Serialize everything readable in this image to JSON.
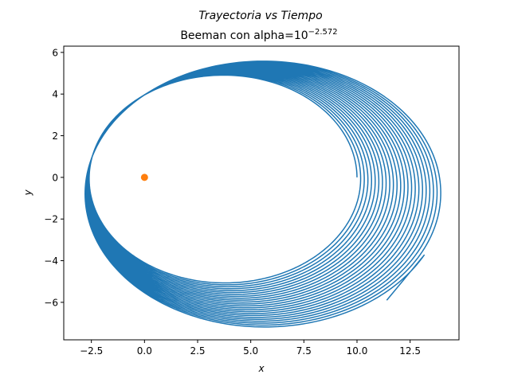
{
  "chart_data": {
    "type": "line",
    "suptitle": "Trayectoria vs Tiempo",
    "title": "Beeman con alpha=10",
    "title_exponent": "−2.572",
    "xlabel": "x",
    "ylabel": "y",
    "xlim": [
      -3.8,
      14.8
    ],
    "ylim": [
      -7.8,
      6.3
    ],
    "xticks": [
      -2.5,
      0.0,
      2.5,
      5.0,
      7.5,
      10.0,
      12.5
    ],
    "xtick_labels": [
      "−2.5",
      "0.0",
      "2.5",
      "5.0",
      "7.5",
      "10.0",
      "12.5"
    ],
    "yticks": [
      -6,
      -4,
      -2,
      0,
      2,
      4,
      6
    ],
    "ytick_labels": [
      "−6",
      "−4",
      "−2",
      "0",
      "2",
      "4",
      "6"
    ],
    "grid": false,
    "series": [
      {
        "kind": "precessing-orbit",
        "color": "#1f77b4",
        "start_point": [
          10.0,
          0.0
        ],
        "end_point": [
          11.4,
          -5.9
        ],
        "initial_orbit": {
          "xmin": -2.6,
          "xmax": 10.0,
          "ymin": -5.0,
          "ymax": 4.9
        },
        "final_orbit": {
          "xmin": -2.8,
          "xmax": 14.1,
          "ymin": -7.2,
          "ymax": 5.6
        },
        "turns": 24
      },
      {
        "kind": "point",
        "color": "#ff7f0e",
        "x": 0.0,
        "y": 0.0
      }
    ]
  }
}
